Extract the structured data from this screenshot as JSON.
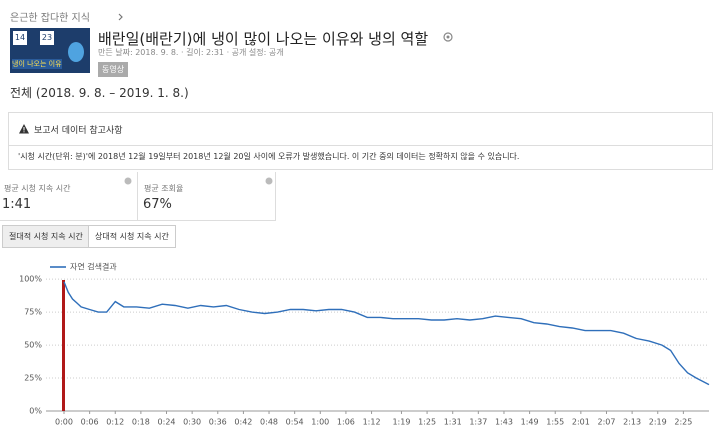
{
  "header": {
    "breadcrumb": "은근한 잡다한 지식",
    "title": "배란일(배란기)에 냉이 많이 나오는 이유와 냉의 역할",
    "meta": "만든 날짜: 2018. 9. 8. · 길이: 2:31 · 공개 설정: 공개",
    "badge": "동영상",
    "thumbnail": {
      "left": "14",
      "right": "23",
      "caption": "냉이 나오는 이유"
    }
  },
  "date_range": "전체 (2018. 9. 8. – 2019. 1. 8.)",
  "notice": {
    "title": "보고서 데이터 참고사항",
    "message": "'시청 시간(단위: 분)'에 2018년 12월 19일부터 2018년 12월 20일 사이에 오류가 발생했습니다. 이 기간 중의 데이터는 정확하지 않을 수 있습니다."
  },
  "metrics": [
    {
      "label": "평균 시청 지속 시간",
      "value": "1:41"
    },
    {
      "label": "평균 조회율",
      "value": "67%"
    }
  ],
  "tabs": [
    "절대적 시청 지속 시간",
    "상대적 시청 지속 시간"
  ],
  "chart_data": {
    "type": "line",
    "grid": true,
    "x": [
      0,
      1,
      2,
      3,
      4,
      6,
      8,
      10,
      12,
      14,
      17,
      20,
      23,
      26,
      29,
      32,
      35,
      38,
      41,
      44,
      47,
      50,
      53,
      56,
      59,
      62,
      65,
      68,
      71,
      74,
      77,
      80,
      83,
      86,
      89,
      92,
      95,
      98,
      101,
      104,
      107,
      110,
      113,
      116,
      119,
      122,
      125,
      128,
      131,
      134,
      137,
      140,
      142,
      144,
      146,
      148,
      151
    ],
    "series": [
      {
        "name": "자연 검색결과",
        "color": "#2f6fba",
        "values": [
          98,
          90,
          85,
          82,
          79,
          77,
          75,
          75,
          83,
          79,
          79,
          78,
          81,
          80,
          78,
          80,
          79,
          80,
          77,
          75,
          74,
          75,
          77,
          77,
          76,
          77,
          77,
          75,
          71,
          71,
          70,
          70,
          70,
          69,
          69,
          70,
          69,
          70,
          72,
          71,
          70,
          67,
          66,
          64,
          63,
          61,
          61,
          61,
          59,
          55,
          53,
          50,
          46,
          36,
          29,
          25,
          20
        ]
      }
    ],
    "xlim": [
      0,
      151
    ],
    "ylim": [
      0,
      110
    ],
    "yticks": [
      {
        "value": 0,
        "label": "0%"
      },
      {
        "value": 25,
        "label": "25%"
      },
      {
        "value": 50,
        "label": "50%"
      },
      {
        "value": 75,
        "label": "75%"
      },
      {
        "value": 100,
        "label": "100%"
      }
    ],
    "xticks": [
      {
        "value": 0,
        "label": "0:00"
      },
      {
        "value": 6,
        "label": "0:06"
      },
      {
        "value": 12,
        "label": "0:12"
      },
      {
        "value": 18,
        "label": "0:18"
      },
      {
        "value": 24,
        "label": "0:24"
      },
      {
        "value": 30,
        "label": "0:30"
      },
      {
        "value": 36,
        "label": "0:36"
      },
      {
        "value": 42,
        "label": "0:42"
      },
      {
        "value": 48,
        "label": "0:48"
      },
      {
        "value": 54,
        "label": "0:54"
      },
      {
        "value": 60,
        "label": "1:00"
      },
      {
        "value": 66,
        "label": "1:06"
      },
      {
        "value": 72,
        "label": "1:12"
      },
      {
        "value": 79,
        "label": "1:19"
      },
      {
        "value": 85,
        "label": "1:25"
      },
      {
        "value": 91,
        "label": "1:31"
      },
      {
        "value": 97,
        "label": "1:37"
      },
      {
        "value": 103,
        "label": "1:43"
      },
      {
        "value": 109,
        "label": "1:49"
      },
      {
        "value": 115,
        "label": "1:55"
      },
      {
        "value": 121,
        "label": "2:01"
      },
      {
        "value": 127,
        "label": "2:07"
      },
      {
        "value": 133,
        "label": "2:13"
      },
      {
        "value": 139,
        "label": "2:19"
      },
      {
        "value": 145,
        "label": "2:25"
      }
    ]
  }
}
